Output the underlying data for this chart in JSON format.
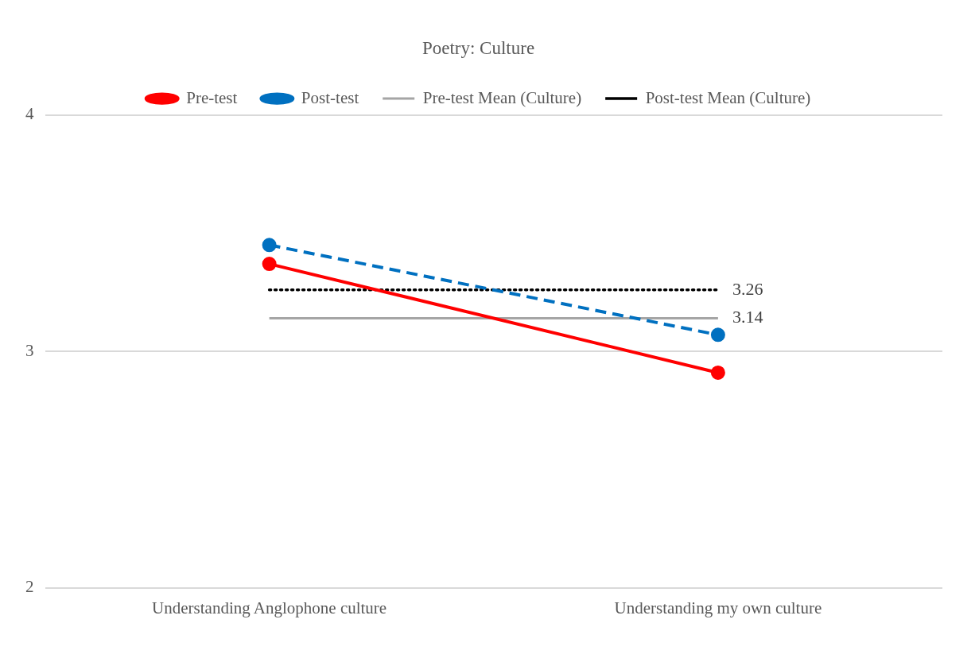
{
  "chart_data": {
    "type": "line",
    "title": "Poetry: Culture",
    "categories": [
      "Understanding Anglophone culture",
      "Understanding my own culture"
    ],
    "series": [
      {
        "name": "Pre-test",
        "color": "#ff0000",
        "values": [
          3.37,
          2.91
        ],
        "marker": "circle",
        "line_style": "solid"
      },
      {
        "name": "Post-test",
        "color": "#0070c0",
        "values": [
          3.45,
          3.07
        ],
        "marker": "circle",
        "line_style": "dashed"
      },
      {
        "name": "Pre-test Mean (Culture)",
        "color": "#a5a5a5",
        "values": [
          3.14,
          3.14
        ],
        "marker": "none",
        "line_style": "solid",
        "value_labels": [
          null,
          "3.14"
        ]
      },
      {
        "name": "Post-test Mean (Culture)",
        "color": "#000000",
        "values": [
          3.26,
          3.26
        ],
        "marker": "none",
        "line_style": "dotted",
        "value_labels": [
          null,
          "3.26"
        ]
      }
    ],
    "ylim": [
      2,
      4
    ],
    "yticks": [
      2,
      3,
      4
    ],
    "grid": "y",
    "legend": "top"
  }
}
